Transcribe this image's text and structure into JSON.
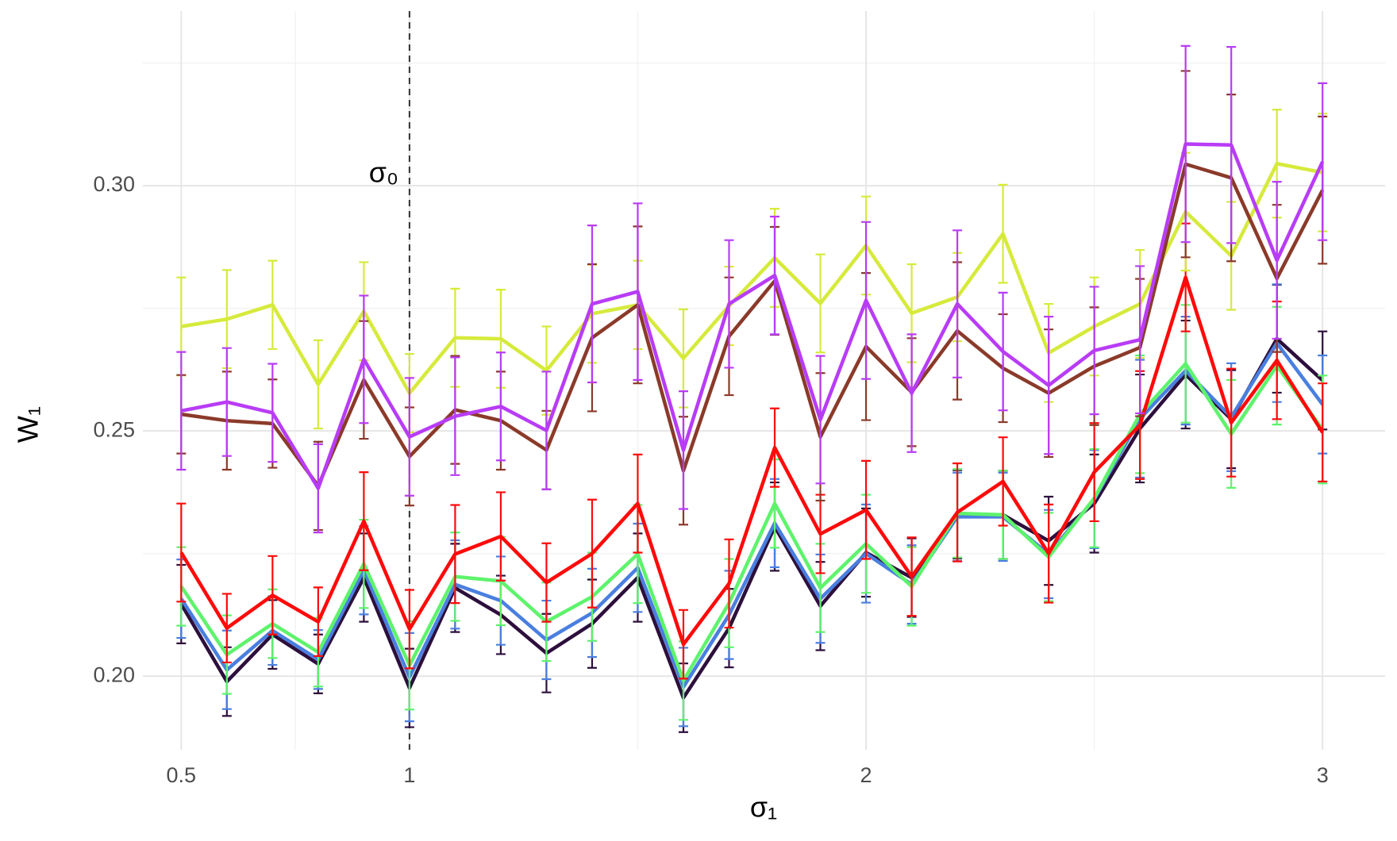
{
  "chart_data": {
    "type": "line",
    "x_label": "σ₁",
    "y_label": "W₁",
    "annotation": "σ₀",
    "vline": 1,
    "x": [
      0.5,
      0.6,
      0.7,
      0.8,
      0.9,
      1.0,
      1.1,
      1.2,
      1.3,
      1.4,
      1.5,
      1.6,
      1.7,
      1.8,
      1.9,
      2.0,
      2.1,
      2.2,
      2.3,
      2.4,
      2.5,
      2.6,
      2.7,
      2.8,
      2.9,
      3.0
    ],
    "xlim": [
      0.416,
      3.137
    ],
    "xticks": [
      0.5,
      1,
      2,
      3
    ],
    "xminor": [
      0.75,
      1.5,
      2.5
    ],
    "ylim": [
      0.185,
      0.3356
    ],
    "yticks": [
      {
        "value": 0.2,
        "label": "0.20"
      },
      {
        "value": 0.25,
        "label": "0.25"
      },
      {
        "value": 0.3,
        "label": "0.30"
      }
    ],
    "yminor": [
      0.225,
      0.275,
      0.325
    ],
    "grid": true,
    "series": [
      {
        "color": "#2d0f3c",
        "values": [
          0.2147,
          0.1989,
          0.2085,
          0.2025,
          0.2201,
          0.1976,
          0.218,
          0.2125,
          0.2047,
          0.2107,
          0.2201,
          0.1956,
          0.2098,
          0.2305,
          0.2143,
          0.2252,
          0.2201,
          0.233,
          0.2329,
          0.2276,
          0.2352,
          0.2505,
          0.2615,
          0.2524,
          0.2688,
          0.2603
        ],
        "errors": [
          0.008,
          0.007,
          0.007,
          0.006,
          0.009,
          0.008,
          0.009,
          0.008,
          0.008,
          0.009,
          0.009,
          0.007,
          0.008,
          0.009,
          0.009,
          0.009,
          0.008,
          0.009,
          0.009,
          0.009,
          0.01,
          0.011,
          0.011,
          0.01,
          0.011,
          0.01
        ]
      },
      {
        "color": "#4a7fe0",
        "values": [
          0.2158,
          0.2013,
          0.2093,
          0.2034,
          0.2216,
          0.1998,
          0.2187,
          0.2154,
          0.2074,
          0.2129,
          0.2221,
          0.1978,
          0.2125,
          0.2312,
          0.2158,
          0.225,
          0.2187,
          0.2325,
          0.2325,
          0.2249,
          0.2361,
          0.2525,
          0.2623,
          0.2528,
          0.2679,
          0.2554
        ],
        "errors": [
          0.008,
          0.008,
          0.007,
          0.006,
          0.009,
          0.009,
          0.009,
          0.009,
          0.008,
          0.009,
          0.009,
          0.008,
          0.009,
          0.009,
          0.009,
          0.01,
          0.008,
          0.009,
          0.009,
          0.009,
          0.01,
          0.012,
          0.011,
          0.011,
          0.012,
          0.01
        ]
      },
      {
        "color": "#5ef36c",
        "values": [
          0.2183,
          0.2044,
          0.2107,
          0.2049,
          0.2229,
          0.2022,
          0.2203,
          0.2194,
          0.2111,
          0.2162,
          0.2249,
          0.1991,
          0.2149,
          0.2352,
          0.218,
          0.227,
          0.2183,
          0.2332,
          0.2329,
          0.2243,
          0.2363,
          0.2534,
          0.2637,
          0.2494,
          0.2633,
          0.2503
        ],
        "errors": [
          0.008,
          0.008,
          0.007,
          0.007,
          0.009,
          0.009,
          0.009,
          0.009,
          0.008,
          0.009,
          0.01,
          0.008,
          0.009,
          0.009,
          0.009,
          0.01,
          0.008,
          0.009,
          0.009,
          0.009,
          0.01,
          0.012,
          0.012,
          0.011,
          0.012,
          0.011
        ]
      },
      {
        "color": "#ff0a0a",
        "values": [
          0.2252,
          0.2098,
          0.2165,
          0.2111,
          0.2316,
          0.2096,
          0.2249,
          0.2285,
          0.2191,
          0.225,
          0.2352,
          0.2065,
          0.2189,
          0.2466,
          0.229,
          0.2339,
          0.2203,
          0.2334,
          0.2397,
          0.225,
          0.2416,
          0.2512,
          0.2813,
          0.2517,
          0.2644,
          0.2497
        ],
        "errors": [
          0.01,
          0.007,
          0.008,
          0.007,
          0.01,
          0.008,
          0.01,
          0.009,
          0.008,
          0.011,
          0.01,
          0.007,
          0.009,
          0.008,
          0.008,
          0.01,
          0.008,
          0.01,
          0.009,
          0.01,
          0.01,
          0.011,
          0.011,
          0.011,
          0.012,
          0.01
        ]
      },
      {
        "color": "#d6ea3c",
        "values": [
          0.2713,
          0.2728,
          0.2757,
          0.2595,
          0.2744,
          0.2577,
          0.269,
          0.2688,
          0.2623,
          0.2739,
          0.2757,
          0.2648,
          0.2755,
          0.2853,
          0.276,
          0.2878,
          0.274,
          0.2773,
          0.2902,
          0.2659,
          0.2713,
          0.2759,
          0.2947,
          0.2857,
          0.3045,
          0.3027
        ],
        "errors": [
          0.01,
          0.01,
          0.009,
          0.009,
          0.01,
          0.008,
          0.01,
          0.01,
          0.009,
          0.01,
          0.009,
          0.01,
          0.008,
          0.01,
          0.01,
          0.01,
          0.01,
          0.009,
          0.01,
          0.01,
          0.01,
          0.011,
          0.012,
          0.011,
          0.011,
          0.012
        ]
      },
      {
        "color": "#8b3a2a",
        "values": [
          0.2534,
          0.2521,
          0.2515,
          0.2388,
          0.2604,
          0.2448,
          0.2543,
          0.2521,
          0.2461,
          0.269,
          0.2757,
          0.2419,
          0.2693,
          0.2806,
          0.2488,
          0.2672,
          0.2579,
          0.2704,
          0.2628,
          0.2577,
          0.2632,
          0.267,
          0.3044,
          0.3016,
          0.2811,
          0.2991
        ],
        "errors": [
          0.008,
          0.01,
          0.009,
          0.009,
          0.012,
          0.01,
          0.011,
          0.01,
          0.008,
          0.015,
          0.016,
          0.011,
          0.012,
          0.011,
          0.013,
          0.015,
          0.011,
          0.014,
          0.011,
          0.013,
          0.012,
          0.014,
          0.019,
          0.017,
          0.015,
          0.015
        ]
      },
      {
        "color": "#b83cf6",
        "values": [
          0.2541,
          0.2559,
          0.2537,
          0.2383,
          0.2646,
          0.2488,
          0.253,
          0.255,
          0.2501,
          0.2759,
          0.2784,
          0.2461,
          0.2759,
          0.2817,
          0.2523,
          0.2766,
          0.2577,
          0.2759,
          0.2662,
          0.2593,
          0.2664,
          0.2686,
          0.3085,
          0.3083,
          0.2848,
          0.3049
        ],
        "errors": [
          0.012,
          0.011,
          0.01,
          0.009,
          0.013,
          0.012,
          0.012,
          0.011,
          0.012,
          0.016,
          0.018,
          0.012,
          0.013,
          0.012,
          0.013,
          0.016,
          0.012,
          0.015,
          0.012,
          0.014,
          0.013,
          0.015,
          0.02,
          0.02,
          0.016,
          0.016
        ]
      }
    ]
  }
}
